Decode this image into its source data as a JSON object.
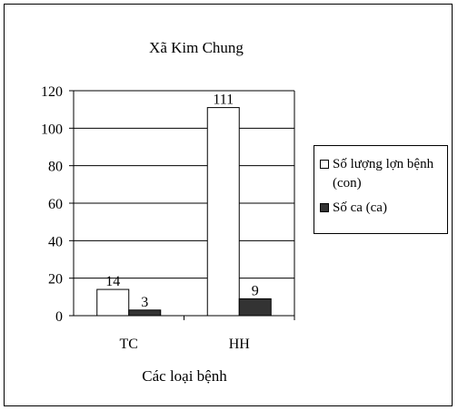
{
  "chart_data": {
    "type": "bar",
    "title": "Xã Kim Chung",
    "xlabel": "Các loại bệnh",
    "ylabel": "",
    "categories": [
      "TC",
      "HH"
    ],
    "series": [
      {
        "name": "Số lượng lợn bệnh (con)",
        "values": [
          14,
          111
        ],
        "color": "#ffffff"
      },
      {
        "name": "Số ca (ca)",
        "values": [
          3,
          9
        ],
        "color": "#333333"
      }
    ],
    "ylim": [
      0,
      120
    ],
    "yticks": [
      0,
      20,
      40,
      60,
      80,
      100,
      120
    ],
    "data_labels": true,
    "grid": true,
    "legend_position": "right"
  }
}
